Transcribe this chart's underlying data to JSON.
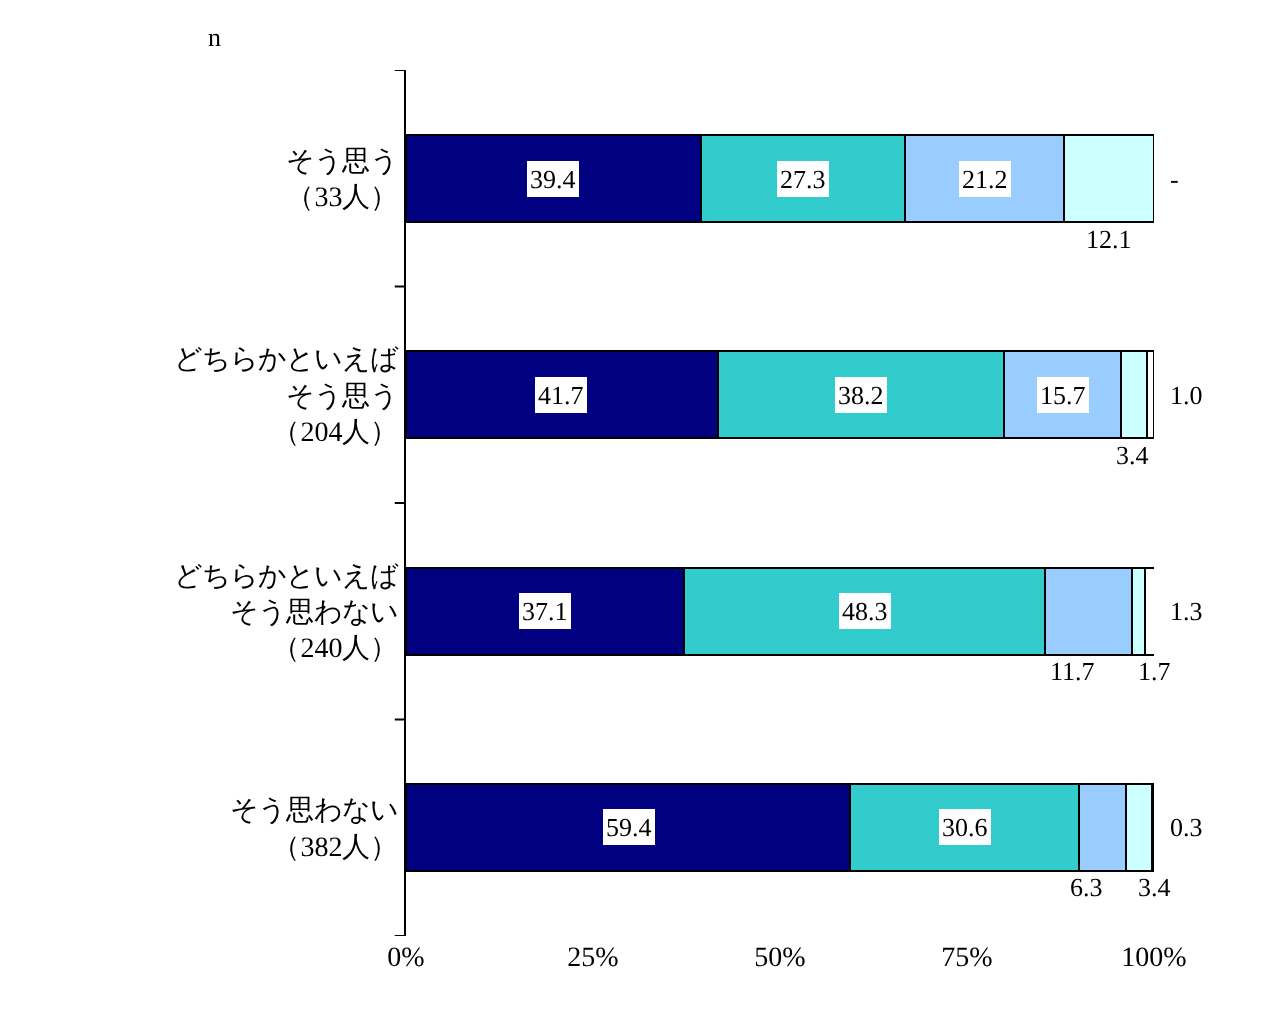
{
  "chart_data": {
    "type": "bar",
    "orientation": "horizontal",
    "stacked": true,
    "categories": [
      "そう思う（33人）",
      "どちらかといえばそう思う（204人）",
      "どちらかといえばそう思わない（240人）",
      "そう思わない（382人）"
    ],
    "series": [
      {
        "color": "#000080",
        "values": [
          39.4,
          41.7,
          37.1,
          59.4
        ],
        "value_labels": [
          "39.4",
          "41.7",
          "37.1",
          "59.4"
        ]
      },
      {
        "color": "#33cccc",
        "values": [
          27.3,
          38.2,
          48.3,
          30.6
        ],
        "value_labels": [
          "27.3",
          "38.2",
          "48.3",
          "30.6"
        ]
      },
      {
        "color": "#99ccff",
        "values": [
          21.2,
          15.7,
          11.7,
          6.3
        ],
        "value_labels": [
          "21.2",
          "15.7",
          "11.7",
          "6.3"
        ]
      },
      {
        "color": "#ccffff",
        "values": [
          12.1,
          3.4,
          1.7,
          3.4
        ],
        "value_labels": [
          "12.1",
          "3.4",
          "1.7",
          "3.4"
        ]
      },
      {
        "color": "#ffffff",
        "values": [
          0,
          1.0,
          1.3,
          0.3
        ],
        "value_labels": [
          "-",
          "1.0",
          "1.3",
          "0.3"
        ]
      }
    ],
    "xlim": [
      0,
      100
    ],
    "xticks": [
      {
        "value": 0,
        "label": "0%"
      },
      {
        "value": 25,
        "label": "25%"
      },
      {
        "value": 50,
        "label": "50%"
      },
      {
        "value": 75,
        "label": "75%"
      },
      {
        "value": 100,
        "label": "100%"
      }
    ],
    "annotations": [
      "n"
    ]
  }
}
